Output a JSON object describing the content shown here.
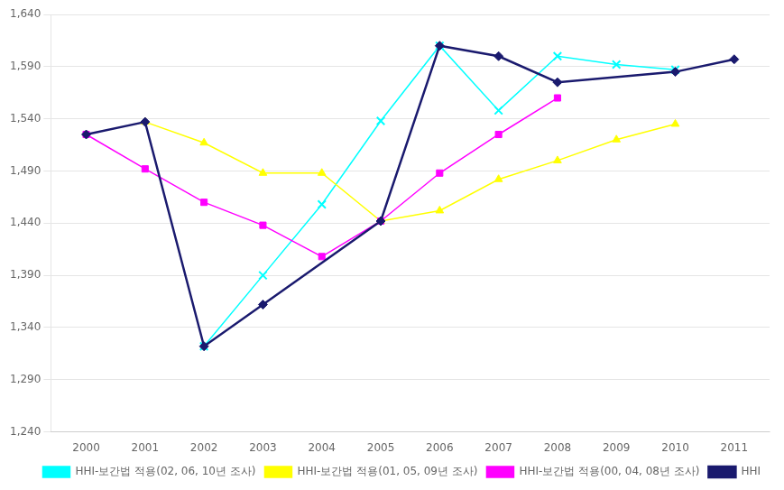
{
  "chart_data": {
    "type": "line",
    "x": [
      2000,
      2001,
      2002,
      2003,
      2004,
      2005,
      2006,
      2007,
      2008,
      2009,
      2010,
      2011
    ],
    "series": [
      {
        "name": "HHI-보간법 적용(02, 06, 10년 조사)",
        "color": "#00FFFF",
        "marker": "x",
        "values": [
          null,
          null,
          1322,
          1390,
          1458,
          1538,
          1610,
          1548,
          1600,
          1592,
          1587,
          null
        ]
      },
      {
        "name": "HHI-보간법 적용(01, 05, 09년 조사)",
        "color": "#FFFF00",
        "marker": "triangle",
        "values": [
          null,
          1537,
          1517,
          1488,
          1488,
          1442,
          1452,
          1482,
          1500,
          1520,
          1535,
          null
        ]
      },
      {
        "name": "HHI-보간법 적용(00, 04, 08년 조사)",
        "color": "#FF00FF",
        "marker": "square",
        "values": [
          1525,
          1492,
          1460,
          1438,
          1408,
          1442,
          1488,
          1525,
          1560,
          null,
          null,
          null
        ]
      },
      {
        "name": "HHI",
        "color": "#1a1a6e",
        "marker": "diamond",
        "values": [
          1525,
          1537,
          1322,
          1362,
          null,
          1442,
          1610,
          1600,
          1575,
          null,
          1585,
          1597
        ]
      }
    ],
    "xlim": [
      1999.4,
      2011.6
    ],
    "xticks": [
      2000,
      2001,
      2002,
      2003,
      2004,
      2005,
      2006,
      2007,
      2008,
      2009,
      2010,
      2011
    ],
    "ylim": [
      1240,
      1640
    ],
    "yticks": [
      {
        "value": 1240,
        "label": "1,240"
      },
      {
        "value": 1290,
        "label": "1,290"
      },
      {
        "value": 1340,
        "label": "1,340"
      },
      {
        "value": 1390,
        "label": "1,390"
      },
      {
        "value": 1440,
        "label": "1,440"
      },
      {
        "value": 1490,
        "label": "1,490"
      },
      {
        "value": 1540,
        "label": "1,540"
      },
      {
        "value": 1590,
        "label": "1,590"
      },
      {
        "value": 1640,
        "label": "1,640"
      }
    ],
    "grid": "y",
    "legend": "lower right"
  }
}
